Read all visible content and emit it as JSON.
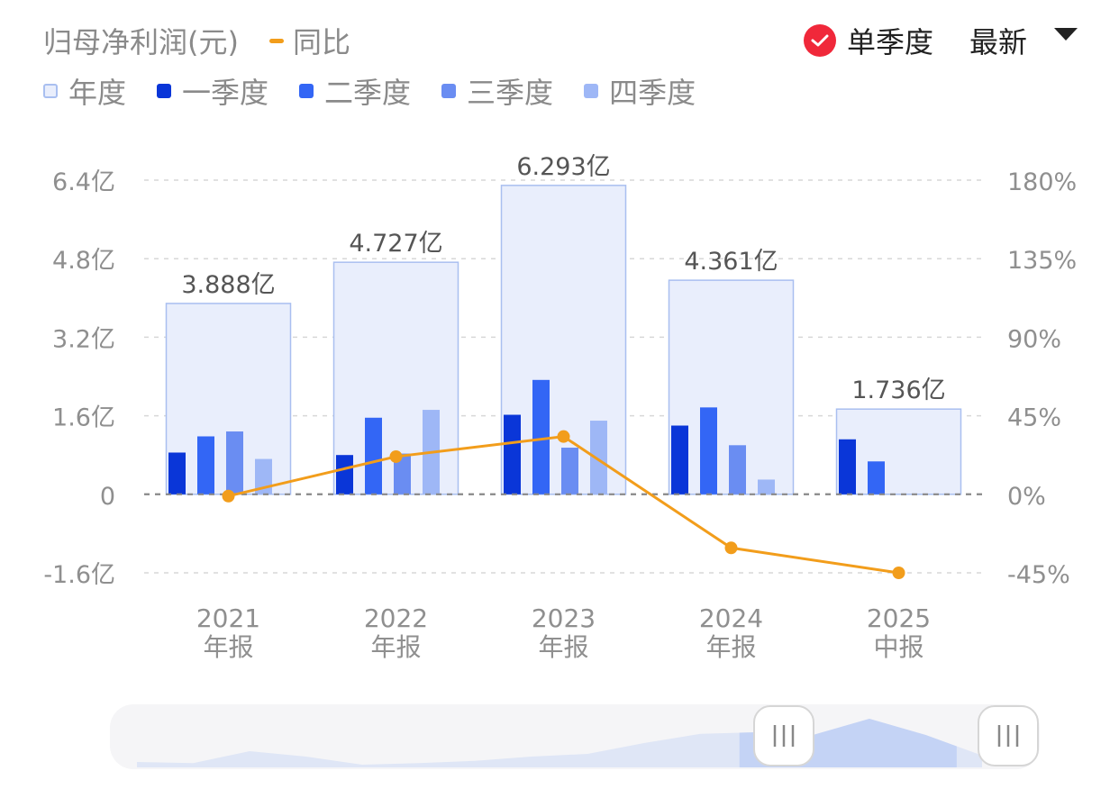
{
  "header": {
    "title": "归母净利润(元)",
    "yoy_label": "同比",
    "mode_label": "单季度",
    "sort_label": "最新"
  },
  "colors": {
    "annual_fill": "#e9eefc",
    "annual_stroke": "#a9bff0",
    "q1": "#0a36d8",
    "q2": "#3366f5",
    "q3": "#6a8df2",
    "q4": "#9eb7f6",
    "yoy_line": "#f29d1b",
    "check": "#f0283a",
    "grid": "#d7d7d7",
    "axis_text": "#8f8f8f"
  },
  "legend": [
    {
      "key": "annual",
      "label": "年度"
    },
    {
      "key": "q1",
      "label": "一季度"
    },
    {
      "key": "q2",
      "label": "二季度"
    },
    {
      "key": "q3",
      "label": "三季度"
    },
    {
      "key": "q4",
      "label": "四季度"
    }
  ],
  "chart_data": {
    "type": "bar",
    "title": "归母净利润(元)",
    "categories": [
      "2021\n年报",
      "2022\n年报",
      "2023\n年报",
      "2024\n年报",
      "2025\n中报"
    ],
    "series": [
      {
        "name": "年度",
        "values": [
          3.888,
          4.727,
          6.293,
          4.361,
          1.736
        ]
      },
      {
        "name": "一季度",
        "values": [
          0.85,
          0.8,
          1.62,
          1.4,
          1.12
        ]
      },
      {
        "name": "二季度",
        "values": [
          1.18,
          1.56,
          2.33,
          1.77,
          0.67
        ]
      },
      {
        "name": "三季度",
        "values": [
          1.28,
          0.83,
          0.95,
          1.0,
          null
        ]
      },
      {
        "name": "四季度",
        "values": [
          0.72,
          1.72,
          1.5,
          0.3,
          null
        ]
      },
      {
        "name": "同比",
        "type": "line",
        "axis": "right",
        "values": [
          -1.0,
          21.6,
          33.1,
          -30.7,
          -45.0
        ]
      }
    ],
    "annual_labels": [
      "3.888亿",
      "4.727亿",
      "6.293亿",
      "4.361亿",
      "1.736亿"
    ],
    "y_left": {
      "ticks": [
        6.4,
        4.8,
        3.2,
        1.6,
        0,
        -1.6
      ],
      "tick_labels": [
        "6.4亿",
        "4.8亿",
        "3.2亿",
        "1.6亿",
        "0",
        "-1.6亿"
      ],
      "range": [
        -1.6,
        6.4
      ]
    },
    "y_right": {
      "ticks": [
        180,
        135,
        90,
        45,
        0,
        -45
      ],
      "tick_labels": [
        "180%",
        "135%",
        "90%",
        "45%",
        "0%",
        "-45%"
      ],
      "range": [
        -45,
        180
      ]
    },
    "grid": true,
    "legend_position": "top-left"
  },
  "slider": {
    "overview": [
      0.1,
      0.08,
      0.3,
      0.2,
      0.05,
      0.08,
      0.12,
      0.2,
      0.25,
      0.45,
      0.62,
      0.65,
      0.6,
      0.9,
      0.6,
      0.22
    ],
    "window_start": 0.73,
    "window_end": 0.97
  }
}
